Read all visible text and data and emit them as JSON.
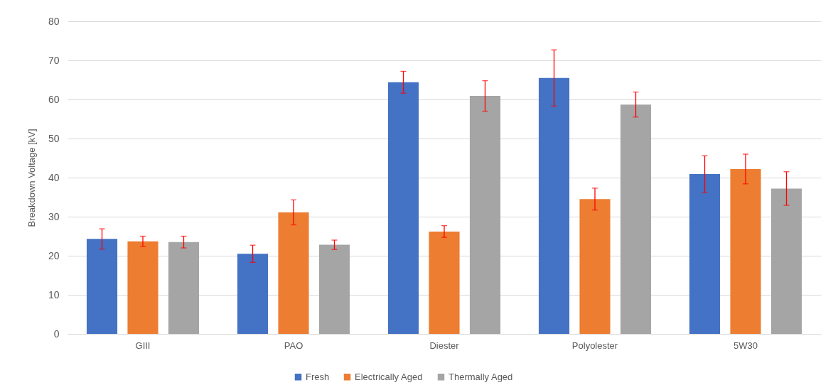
{
  "chart_data": {
    "type": "bar",
    "ylabel": "Breakdown Voltage [kV]",
    "categories": [
      "GIII",
      "PAO",
      "Diester",
      "Polyolester",
      "5W30"
    ],
    "series": [
      {
        "name": "Fresh",
        "color": "#4472c4",
        "values": [
          24.3,
          20.5,
          64.4,
          65.5,
          40.9
        ],
        "errors": [
          2.6,
          2.2,
          2.8,
          7.2,
          4.7
        ]
      },
      {
        "name": "Electrically Aged",
        "color": "#ed7d31",
        "values": [
          23.7,
          31.1,
          26.2,
          34.5,
          42.2
        ],
        "errors": [
          1.3,
          3.2,
          1.5,
          2.8,
          3.8
        ]
      },
      {
        "name": "Thermally Aged",
        "color": "#a5a5a5",
        "values": [
          23.5,
          22.8,
          60.9,
          58.7,
          37.2
        ],
        "errors": [
          1.5,
          1.2,
          3.9,
          3.2,
          4.3
        ]
      }
    ],
    "ylim": [
      0,
      80
    ],
    "yticks": [
      0,
      10,
      20,
      30,
      40,
      50,
      60,
      70,
      80
    ],
    "grid": "y",
    "legend": "bottom"
  }
}
